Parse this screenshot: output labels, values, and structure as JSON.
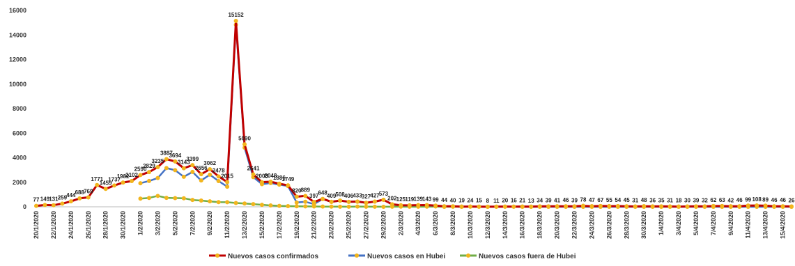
{
  "chart_data": {
    "type": "line",
    "categories": [
      "20/1/2020",
      null,
      "22/1/2020",
      null,
      "24/1/2020",
      null,
      "26/1/2020",
      null,
      "28/1/2020",
      null,
      "30/1/2020",
      null,
      "1/2/2020",
      null,
      "3/2/2020",
      null,
      "5/2/2020",
      null,
      "7/2/2020",
      null,
      "9/2/2020",
      null,
      "11/2/2020",
      null,
      "13/2/2020",
      null,
      "15/2/2020",
      null,
      "17/2/2020",
      null,
      "19/2/2020",
      null,
      "21/2/2020",
      null,
      "23/2/2020",
      null,
      "25/2/2020",
      null,
      "27/2/2020",
      null,
      "29/2/2020",
      null,
      "2/3/2020",
      null,
      "4/3/2020",
      null,
      "6/3/2020",
      null,
      "8/3/2020",
      null,
      "10/3/2020",
      null,
      "12/3/2020",
      null,
      "14/3/2020",
      null,
      "16/3/2020",
      null,
      "18/3/2020",
      null,
      "20/3/2020",
      null,
      "22/3/2020",
      null,
      "24/3/2020",
      null,
      "26/3/2020",
      null,
      "28/3/2020",
      null,
      "30/3/2020",
      null,
      "1/4/2020",
      null,
      "3/4/2020",
      null,
      "5/4/2020",
      null,
      "7/4/2020",
      null,
      "9/4/2020",
      null,
      "11/4/2020",
      null,
      "13/4/2020",
      null,
      "15/4/2020",
      null
    ],
    "series": [
      {
        "name": "Nuevos casos confirmados",
        "color": "#c00000",
        "marker_color": "#f2b51d",
        "values": [
          77,
          149,
          131,
          259,
          444,
          688,
          769,
          1771,
          1459,
          1737,
          1982,
          2102,
          2590,
          2829,
          3235,
          3887,
          3694,
          3143,
          3399,
          2656,
          3062,
          2478,
          2015,
          15152,
          5090,
          2641,
          2008,
          2048,
          1886,
          1749,
          820,
          889,
          397,
          648,
          409,
          508,
          406,
          433,
          327,
          427,
          573,
          202,
          125,
          119,
          139,
          143,
          99,
          44,
          40,
          19,
          24,
          15,
          8,
          11,
          20,
          16,
          21,
          13,
          34,
          39,
          41,
          46,
          39,
          78,
          47,
          67,
          55,
          54,
          45,
          31,
          48,
          36,
          35,
          31,
          18,
          30,
          39,
          32,
          62,
          63,
          42,
          46,
          99,
          108,
          89,
          46,
          46,
          26
        ]
      },
      {
        "name": "Nuevos casos en Hubei",
        "color": "#4472c4",
        "marker_color": "#f2b51d",
        "values": [
          null,
          null,
          null,
          null,
          null,
          null,
          null,
          null,
          null,
          null,
          null,
          null,
          1921,
          2103,
          2345,
          3156,
          2987,
          2447,
          2841,
          2147,
          2618,
          2097,
          1638,
          14840,
          4823,
          2420,
          1843,
          1933,
          1807,
          1693,
          349,
          411,
          220,
          630,
          398,
          499,
          401,
          409,
          318,
          423,
          570,
          196,
          114,
          115,
          134,
          126,
          74,
          41,
          36,
          17,
          13,
          8,
          5,
          4,
          4,
          4,
          1,
          1,
          0,
          0,
          0,
          0,
          0,
          0,
          0,
          0,
          0,
          0,
          0,
          0,
          0,
          1,
          0,
          0,
          0,
          0,
          0,
          0,
          0,
          0,
          0,
          0,
          0,
          0,
          0,
          0,
          0,
          0
        ]
      },
      {
        "name": "Nuevos casos fuera de Hubei",
        "color": "#70ad47",
        "marker_color": "#f2b51d",
        "values": [
          null,
          null,
          null,
          null,
          null,
          null,
          null,
          null,
          null,
          null,
          null,
          null,
          669,
          726,
          890,
          731,
          707,
          696,
          558,
          509,
          444,
          381,
          377,
          312,
          267,
          221,
          166,
          115,
          79,
          56,
          45,
          36,
          31,
          18,
          11,
          9,
          5,
          24,
          9,
          4,
          3,
          6,
          11,
          4,
          5,
          17,
          25,
          3,
          4,
          2,
          11,
          7,
          3,
          7,
          16,
          15,
          20,
          12,
          34,
          39,
          41,
          46,
          39,
          78,
          47,
          67,
          55,
          54,
          45,
          31,
          48,
          36,
          35,
          31,
          18,
          30,
          39,
          32,
          62,
          63,
          42,
          46,
          99,
          108,
          89,
          46,
          46,
          26
        ]
      }
    ],
    "labeled_series": 0,
    "ylim": [
      0,
      16000
    ],
    "yticks": [
      0,
      2000,
      4000,
      6000,
      8000,
      10000,
      12000,
      14000,
      16000
    ],
    "grid": false,
    "legend": "bottom"
  }
}
